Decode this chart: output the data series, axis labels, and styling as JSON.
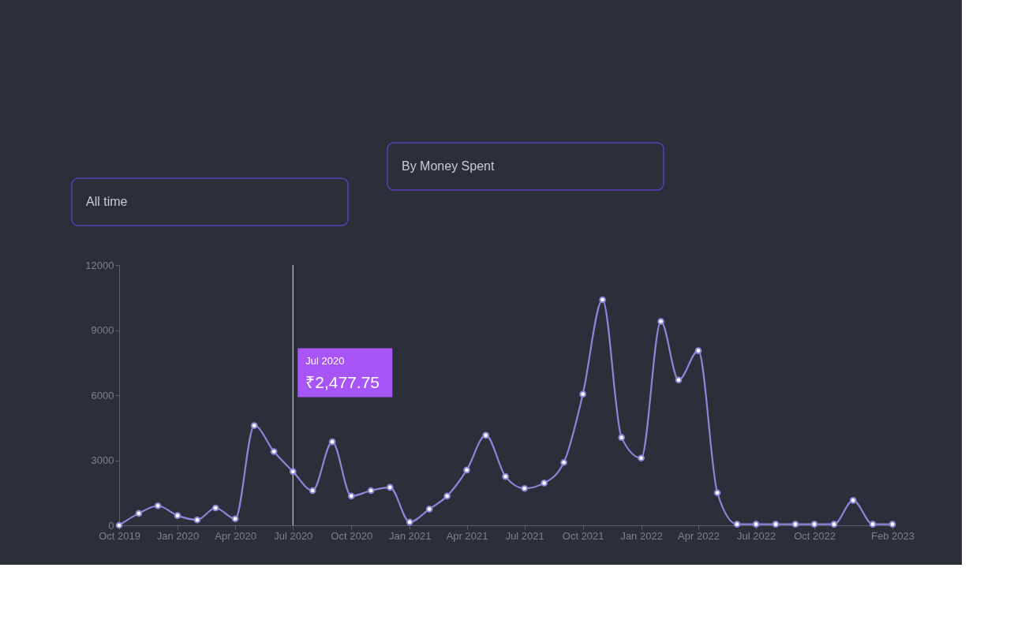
{
  "chart_data": {
    "type": "line",
    "x": [
      "2019-10",
      "2019-11",
      "2019-12",
      "2020-01",
      "2020-02",
      "2020-03",
      "2020-04",
      "2020-05",
      "2020-06",
      "2020-07",
      "2020-08",
      "2020-09",
      "2020-10",
      "2020-11",
      "2020-12",
      "2021-01",
      "2021-02",
      "2021-03",
      "2021-04",
      "2021-05",
      "2021-06",
      "2021-07",
      "2021-08",
      "2021-09",
      "2021-10",
      "2021-11",
      "2021-12",
      "2022-01",
      "2022-02",
      "2022-03",
      "2022-04",
      "2022-05",
      "2022-06",
      "2022-07",
      "2022-08",
      "2022-09",
      "2022-10",
      "2022-11",
      "2022-12",
      "2023-01",
      "2023-02"
    ],
    "series": [
      {
        "color": "#8b87d8",
        "values": [
          0,
          550,
          900,
          450,
          250,
          800,
          300,
          4600,
          3400,
          2477.75,
          1600,
          3850,
          1350,
          1600,
          1750,
          150,
          750,
          1350,
          2550,
          4150,
          2250,
          1700,
          1950,
          2900,
          6050,
          10400,
          4050,
          3100,
          9400,
          6700,
          8050,
          1500,
          50,
          50,
          50,
          50,
          50,
          50,
          1150,
          50,
          50
        ]
      }
    ],
    "xlim": [
      "2019-10",
      "2023-02"
    ],
    "xticks": [
      {
        "value": "2019-10",
        "label": "Oct 2019"
      },
      {
        "value": "2020-01",
        "label": "Jan 2020"
      },
      {
        "value": "2020-04",
        "label": "Apr 2020"
      },
      {
        "value": "2020-07",
        "label": "Jul 2020"
      },
      {
        "value": "2020-10",
        "label": "Oct 2020"
      },
      {
        "value": "2021-01",
        "label": "Jan 2021"
      },
      {
        "value": "2021-04",
        "label": "Apr 2021"
      },
      {
        "value": "2021-07",
        "label": "Jul 2021"
      },
      {
        "value": "2021-10",
        "label": "Oct 2021"
      },
      {
        "value": "2022-01",
        "label": "Jan 2022"
      },
      {
        "value": "2022-04",
        "label": "Apr 2022"
      },
      {
        "value": "2022-07",
        "label": "Jul 2022"
      },
      {
        "value": "2022-10",
        "label": "Oct 2022"
      },
      {
        "value": "2023-02",
        "label": "Feb 2023"
      }
    ],
    "ylim": [
      0,
      12000
    ],
    "yticks": [
      0,
      3000,
      6000,
      9000,
      12000
    ],
    "ref_lines": [
      {
        "axis": "x",
        "value": "2020-07",
        "color": "#c8c8c8"
      }
    ],
    "annotations": [
      "All time",
      "By Money Spent",
      "Jul 2020",
      "₹2,477.75"
    ],
    "grid": false,
    "marker": "circle",
    "line_style": "solid"
  }
}
